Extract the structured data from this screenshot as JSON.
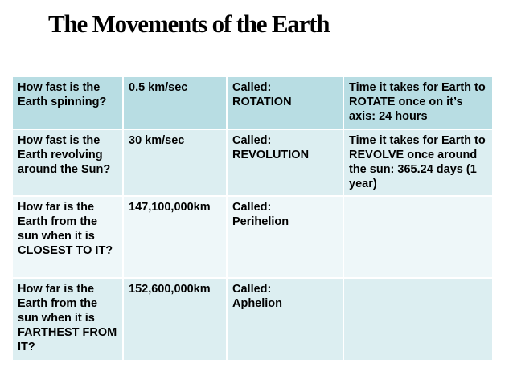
{
  "slide": {
    "title": "The Movements of the Earth"
  },
  "table": {
    "rows": [
      {
        "question": "How fast is the Earth spinning?",
        "value": "0.5 km/sec",
        "called": "Called:\nROTATION",
        "detail": "Time it takes for Earth to ROTATE once on it’s axis: 24 hours"
      },
      {
        "question": "How fast is the Earth revolving around the Sun?",
        "value": "30 km/sec",
        "called": "Called:\nREVOLUTION",
        "detail": "Time it takes for Earth to REVOLVE once around the sun: 365.24 days (1 year)"
      },
      {
        "question": "How far is the Earth from the sun when it is CLOSEST TO IT?",
        "value": "147,100,000km",
        "called": "Called:\nPerihelion",
        "detail": ""
      },
      {
        "question": "How far is the Earth from the sun when it is FARTHEST FROM IT?",
        "value": "152,600,000km",
        "called": "Called:\nAphelion",
        "detail": ""
      }
    ]
  },
  "colors": {
    "header_row": "#b8dde3",
    "band_dark": "#dceef1",
    "band_light": "#eef7f9"
  }
}
